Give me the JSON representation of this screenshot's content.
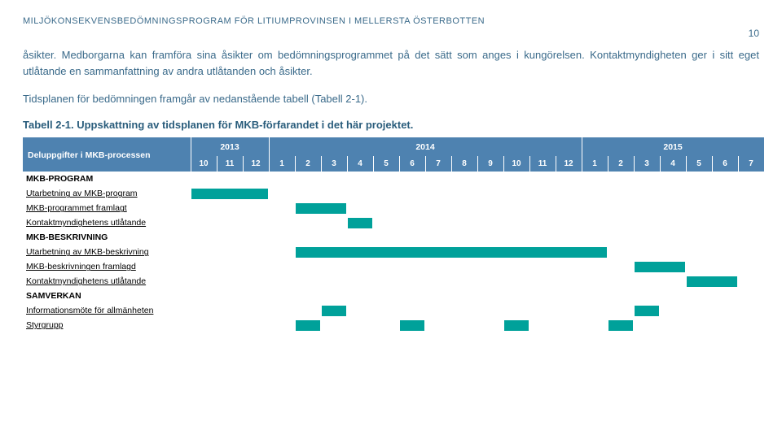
{
  "doc_header": "MILJÖKONSEKVENSBEDÖMNINGSPROGRAM FÖR LITIUMPROVINSEN I MELLERSTA ÖSTERBOTTEN",
  "page_number": "10",
  "para1": "åsikter. Medborgarna kan framföra sina åsikter om bedömningsprogrammet på det sätt som anges i kungörelsen. Kontaktmyndigheten ger i sitt eget utlåtande en sammanfattning av andra utlåtanden och åsikter.",
  "para2": "Tidsplanen för bedömningen framgår av nedanstående tabell (Tabell 2-1).",
  "table_caption": "Tabell 2-1. Uppskattning av tidsplanen för MKB-förfarandet i det här projektet.",
  "gantt": {
    "corner_label": "Deluppgifter i MKB-processen",
    "years": [
      "2013",
      "2014",
      "2015"
    ],
    "year_spans": [
      3,
      12,
      7
    ],
    "months": [
      "10",
      "11",
      "12",
      "1",
      "2",
      "3",
      "4",
      "5",
      "6",
      "7",
      "8",
      "9",
      "10",
      "11",
      "12",
      "1",
      "2",
      "3",
      "4",
      "5",
      "6",
      "7"
    ],
    "bar_color": "#00a19a",
    "header_bg": "#4e82b0",
    "rows": [
      {
        "label": "MKB-PROGRAM",
        "section": true,
        "bars": []
      },
      {
        "label": "Utarbetning av MKB-program",
        "underline": true,
        "bars": [
          [
            0,
            3
          ]
        ]
      },
      {
        "label": "MKB-programmet framlagt",
        "underline": true,
        "bars": [
          [
            4,
            6
          ]
        ]
      },
      {
        "label": "Kontaktmyndighetens utlåtande",
        "underline": true,
        "bars": [
          [
            6,
            7
          ]
        ]
      },
      {
        "label": "MKB-BESKRIVNING",
        "section": true,
        "bars": []
      },
      {
        "label": "Utarbetning av MKB-beskrivning",
        "underline": true,
        "bars": [
          [
            4,
            16
          ]
        ]
      },
      {
        "label": "MKB-beskrivningen framlagd",
        "underline": true,
        "bars": [
          [
            17,
            19
          ]
        ]
      },
      {
        "label": "Kontaktmyndighetens utlåtande",
        "underline": true,
        "bars": [
          [
            19,
            21
          ]
        ]
      },
      {
        "label": "SAMVERKAN",
        "section": true,
        "bars": []
      },
      {
        "label": "Informationsmöte för allmänheten",
        "underline": true,
        "bars": [
          [
            5,
            6
          ],
          [
            17,
            18
          ]
        ]
      },
      {
        "label": "Styrgrupp",
        "underline": true,
        "bars": [
          [
            4,
            5
          ],
          [
            8,
            9
          ],
          [
            12,
            13
          ],
          [
            16,
            17
          ]
        ]
      }
    ]
  }
}
